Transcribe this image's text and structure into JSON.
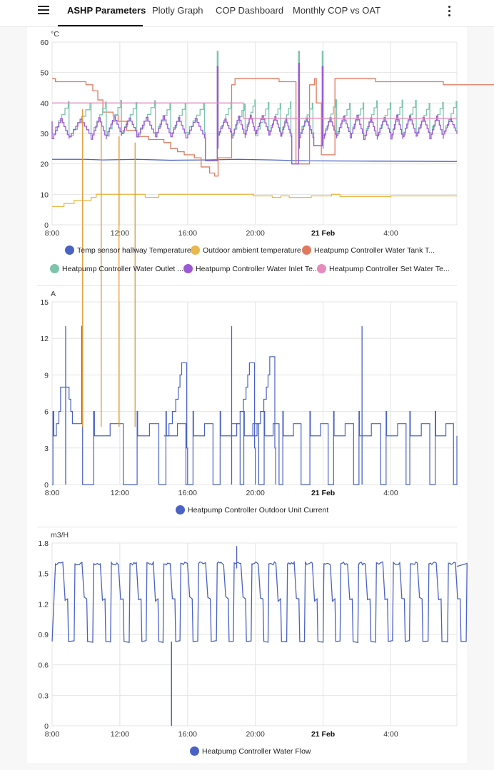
{
  "header": {
    "tabs": [
      {
        "label": "ASHP Parameters",
        "active": true
      },
      {
        "label": "Plotly Graph",
        "active": false
      },
      {
        "label": "COP Dashboard",
        "active": false
      },
      {
        "label": "Monthly COP vs OAT",
        "active": false
      }
    ],
    "menu_icon": "hamburger-menu-icon",
    "more_icon": "more-vertical-icon"
  },
  "chart_data": [
    {
      "type": "line",
      "unit": "°C",
      "ylim": [
        0,
        60
      ],
      "yticks": [
        "0",
        "10",
        "20",
        "30",
        "40",
        "50",
        "60"
      ],
      "xlim_hours": [
        8,
        31.9
      ],
      "xticks": [
        {
          "label": "8:00",
          "h": 8,
          "bold": false
        },
        {
          "label": "12:00",
          "h": 12,
          "bold": false
        },
        {
          "label": "16:00",
          "h": 16,
          "bold": false
        },
        {
          "label": "20:00",
          "h": 20,
          "bold": false
        },
        {
          "label": "21 Feb",
          "h": 24,
          "bold": true
        },
        {
          "label": "4:00",
          "h": 28,
          "bold": false
        }
      ],
      "grid": true,
      "legend_position": "bottom",
      "series": [
        {
          "name": "Temp sensor hallway Temperature",
          "color": "#4a62c4",
          "kind": "smooth",
          "points": [
            [
              8,
              21.5
            ],
            [
              10,
              21.5
            ],
            [
              11,
              21.3
            ],
            [
              13,
              21.5
            ],
            [
              15,
              21.2
            ],
            [
              17,
              21.3
            ],
            [
              19,
              21.5
            ],
            [
              21,
              21.3
            ],
            [
              23,
              21.0
            ],
            [
              27,
              20.9
            ],
            [
              31.9,
              20.8
            ]
          ]
        },
        {
          "name": "Outdoor ambient temperature",
          "color": "#e8b84a",
          "kind": "step",
          "points": [
            [
              8,
              6
            ],
            [
              8.7,
              7
            ],
            [
              9.3,
              8
            ],
            [
              10.3,
              9
            ],
            [
              10.6,
              10
            ],
            [
              13.5,
              9
            ],
            [
              14.3,
              10
            ],
            [
              19,
              10
            ],
            [
              19.9,
              9.5
            ],
            [
              21,
              9
            ],
            [
              21.5,
              9.5
            ],
            [
              22,
              9
            ],
            [
              23,
              9
            ],
            [
              23.3,
              9.5
            ],
            [
              24.5,
              10
            ],
            [
              25,
              9.3
            ],
            [
              27.5,
              9.3
            ],
            [
              28,
              9.5
            ],
            [
              31.9,
              9.5
            ]
          ]
        },
        {
          "name": "Heatpump Controller Water Tank T...",
          "color": "#e07a5f",
          "kind": "step",
          "points": [
            [
              8,
              48
            ],
            [
              8.2,
              47
            ],
            [
              10.0,
              46
            ],
            [
              10.4,
              44
            ],
            [
              10.7,
              41
            ],
            [
              11,
              37
            ],
            [
              11.6,
              36
            ],
            [
              11.9,
              34
            ],
            [
              12.4,
              31
            ],
            [
              13,
              29
            ],
            [
              13.7,
              28
            ],
            [
              14.6,
              27
            ],
            [
              15,
              25
            ],
            [
              15.4,
              24
            ],
            [
              15.8,
              23
            ],
            [
              16.4,
              22
            ],
            [
              16.8,
              19
            ],
            [
              17.3,
              17
            ],
            [
              17.6,
              16
            ],
            [
              17.8,
              22
            ],
            [
              18.6,
              46
            ],
            [
              18.8,
              48
            ],
            [
              21.2,
              48
            ],
            [
              21.4,
              47
            ],
            [
              22.2,
              47
            ],
            [
              22.4,
              20
            ],
            [
              22.6,
              20
            ],
            [
              23.2,
              46
            ],
            [
              23.5,
              48
            ],
            [
              23.6,
              40
            ],
            [
              23.9,
              23
            ],
            [
              24.7,
              48
            ],
            [
              27,
              48
            ],
            [
              27.1,
              47
            ],
            [
              31,
              47
            ],
            [
              31.1,
              46
            ],
            [
              34,
              46
            ],
            [
              34.2,
              45.2
            ],
            [
              35,
              45.2
            ]
          ]
        },
        {
          "name": "Heatpump Controller Water Outlet ...",
          "color": "#7ec4ad",
          "kind": "saw",
          "base": 30,
          "peak": 40
        },
        {
          "name": "Heatpump Controller Water Inlet Te...",
          "color": "#9b59d6",
          "kind": "saw",
          "base": 29,
          "peak": 35
        },
        {
          "name": "Heatpump Controller Set Water Te...",
          "color": "#e68bbd",
          "kind": "step",
          "points": [
            [
              8,
              40
            ],
            [
              19.2,
              40
            ],
            [
              19.3,
              35
            ],
            [
              31.9,
              35
            ]
          ]
        }
      ]
    },
    {
      "type": "line",
      "unit": "A",
      "ylim": [
        0,
        15
      ],
      "yticks": [
        "0",
        "3",
        "6",
        "9",
        "12",
        "15"
      ],
      "xticks": [
        {
          "label": "8:00",
          "h": 8,
          "bold": false
        },
        {
          "label": "12:00",
          "h": 12,
          "bold": false
        },
        {
          "label": "16:00",
          "h": 16,
          "bold": false
        },
        {
          "label": "20:00",
          "h": 20,
          "bold": false
        },
        {
          "label": "21 Feb",
          "h": 24,
          "bold": true
        },
        {
          "label": "4:00",
          "h": 28,
          "bold": false
        }
      ],
      "grid": true,
      "legend_position": "bottom",
      "series": [
        {
          "name": "Heatpump Controller Outdoor Unit Current",
          "color": "#4a62c4",
          "kind": "cycles",
          "peaks": [
            [
              8.8,
              13
            ],
            [
              18.6,
              13
            ],
            [
              26.3,
              13
            ]
          ],
          "boosts": [
            [
              15.8,
              10
            ],
            [
              19.8,
              10
            ],
            [
              21.0,
              10.5
            ]
          ]
        }
      ]
    },
    {
      "type": "line",
      "unit": "m3/H",
      "ylim": [
        0,
        1.8
      ],
      "yticks": [
        "0",
        "0.3",
        "0.6",
        "0.9",
        "1.2",
        "1.5",
        "1.8"
      ],
      "xticks": [
        {
          "label": "8:00",
          "h": 8,
          "bold": false
        },
        {
          "label": "12:00",
          "h": 12,
          "bold": false
        },
        {
          "label": "16:00",
          "h": 16,
          "bold": false
        },
        {
          "label": "20:00",
          "h": 20,
          "bold": false
        },
        {
          "label": "21 Feb",
          "h": 24,
          "bold": true
        },
        {
          "label": "4:00",
          "h": 28,
          "bold": false
        }
      ],
      "grid": true,
      "legend_position": "bottom",
      "series": [
        {
          "name": "Heatpump Controller Water Flow",
          "color": "#4a62c4",
          "kind": "flow",
          "high": 1.6,
          "low": 0.83,
          "mid": 1.25,
          "spike_zero_h": 15.05,
          "spike_high": [
            18.9,
            1.77
          ]
        }
      ]
    }
  ],
  "vertical_markers": {
    "color": "#e09a3a",
    "hours": [
      9.8,
      10.9,
      11.95,
      12.9
    ]
  }
}
